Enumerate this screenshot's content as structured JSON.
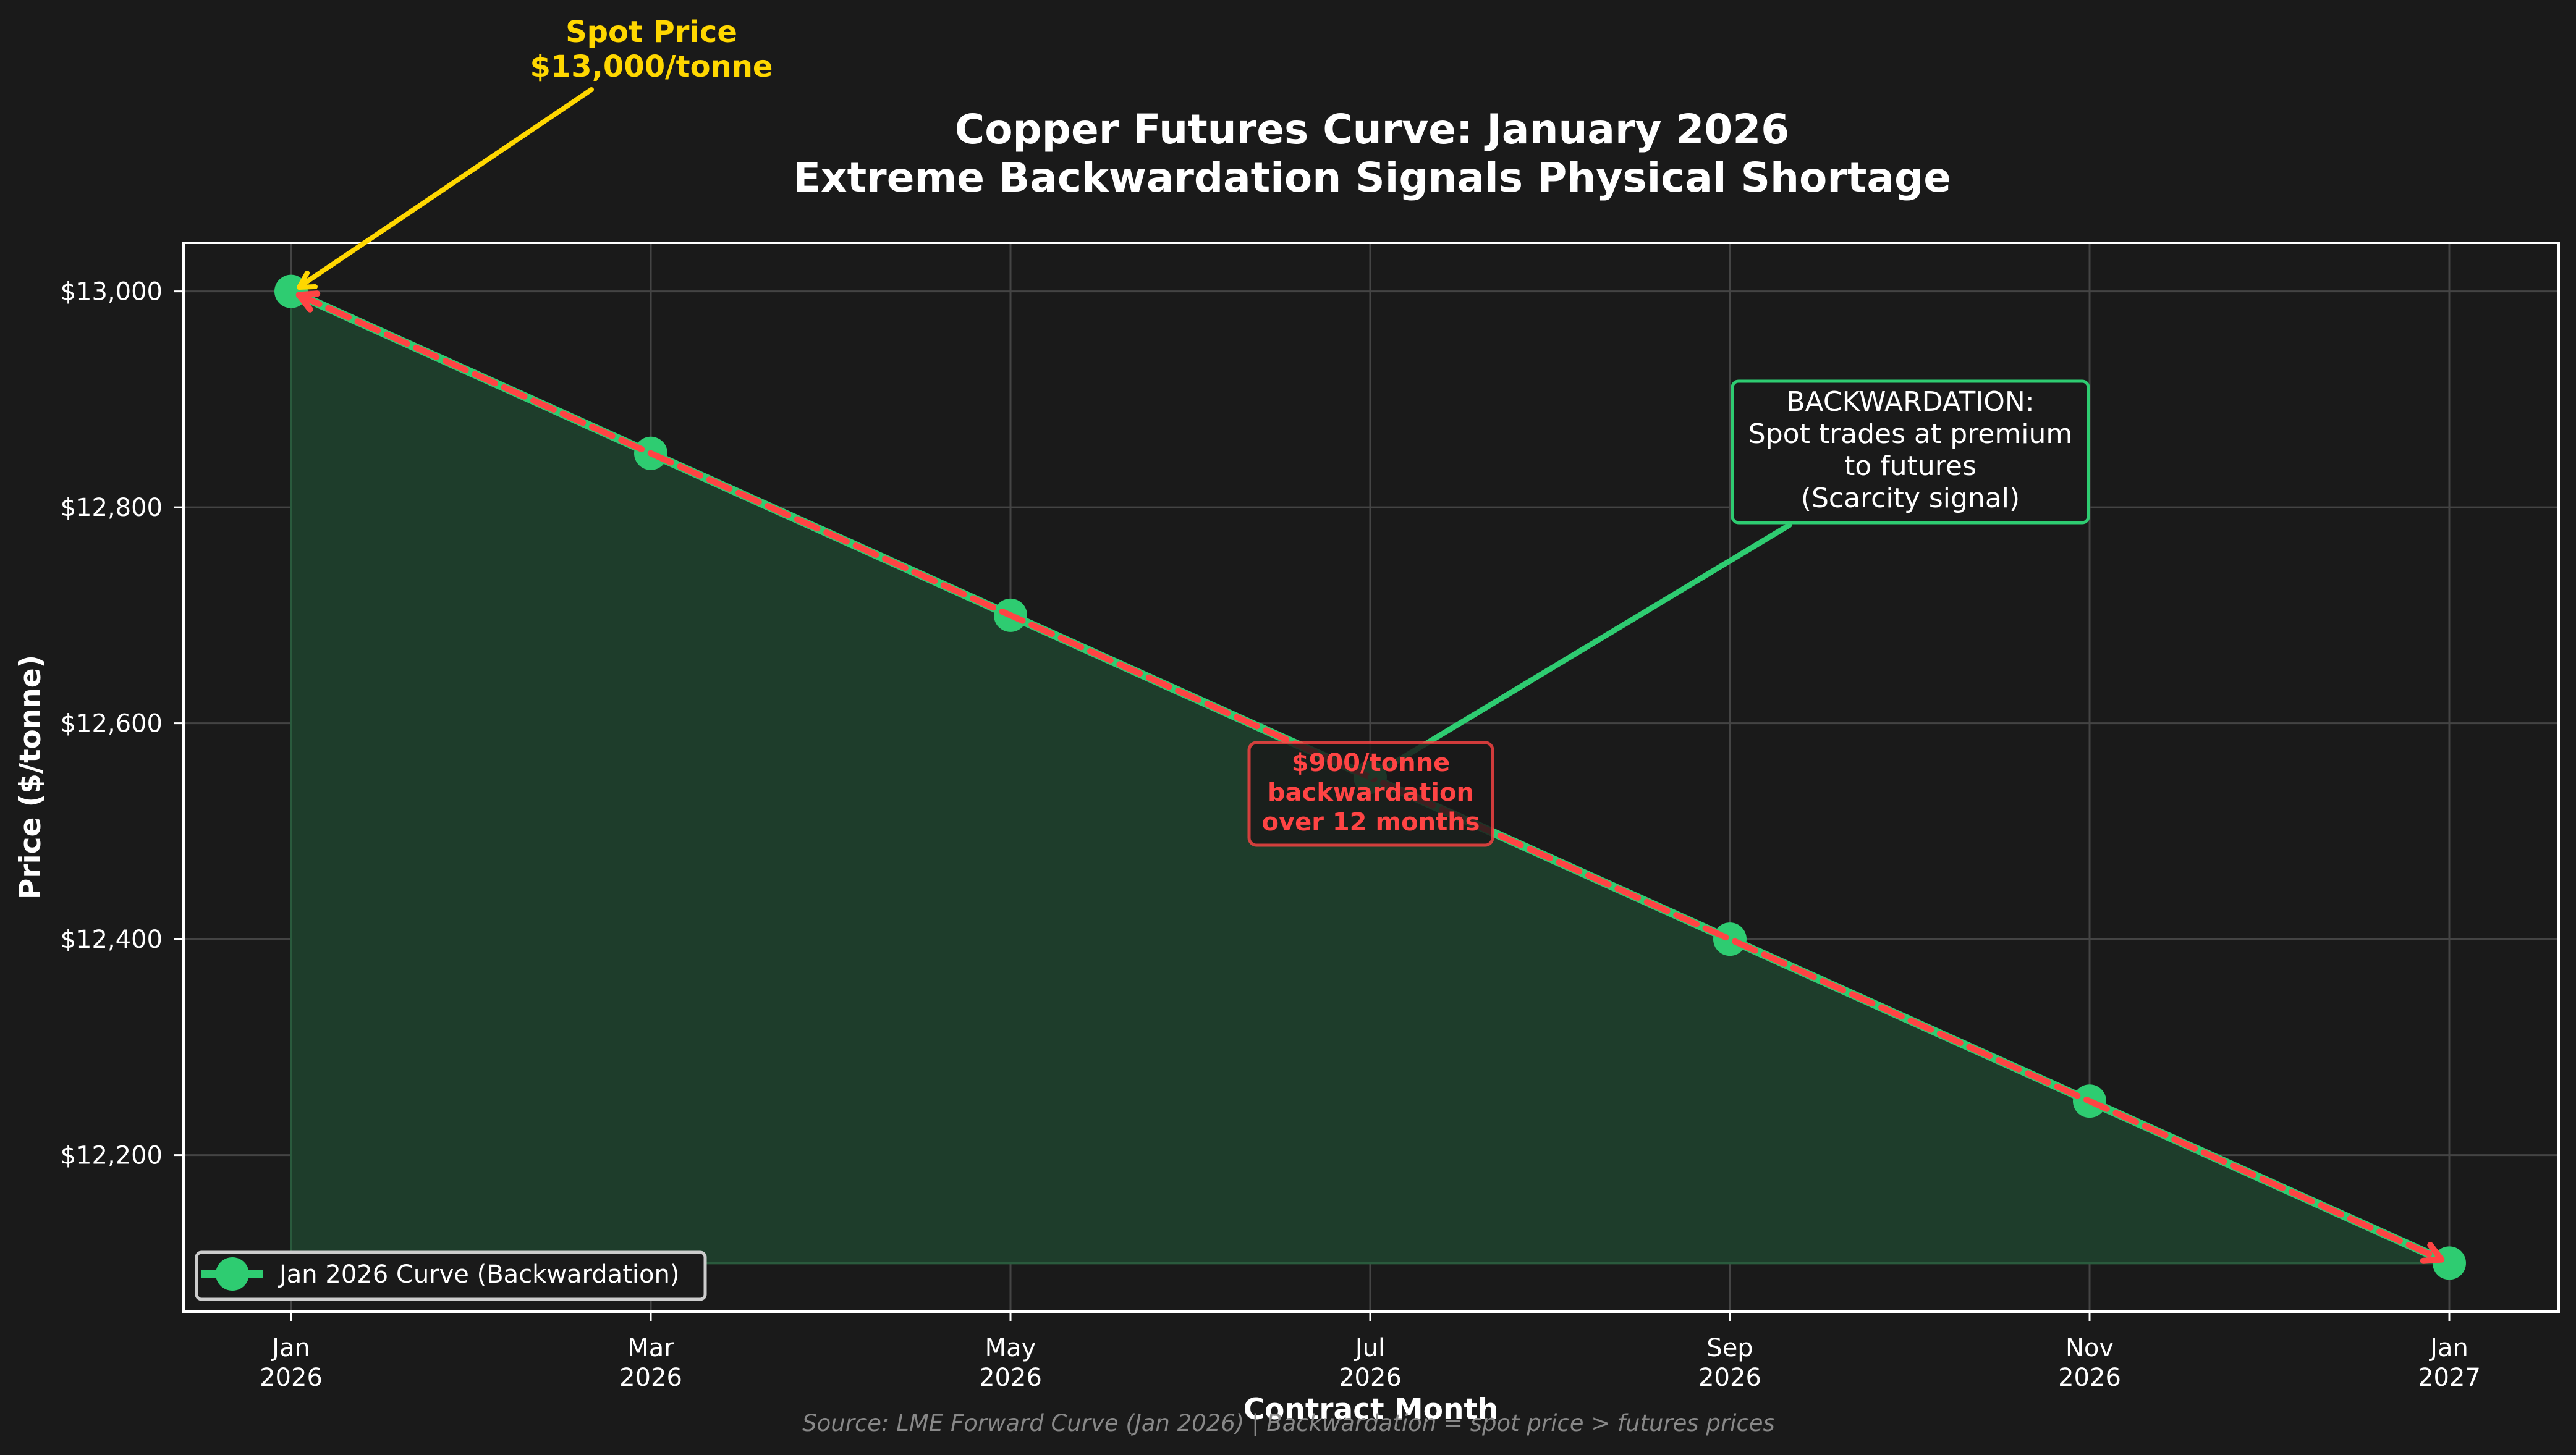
{
  "chart_data": {
    "type": "line",
    "title": "Copper Futures Curve: January 2026",
    "subtitle": "Extreme Backwardation Signals Physical Shortage",
    "xlabel": "Contract Month",
    "ylabel": "Price ($/tonne)",
    "x": [
      "Jan 2026",
      "Mar 2026",
      "May 2026",
      "Jul 2026",
      "Sep 2026",
      "Nov 2026",
      "Jan 2027"
    ],
    "x_tick_labels": [
      {
        "month": "Jan",
        "year": "2026"
      },
      {
        "month": "Mar",
        "year": "2026"
      },
      {
        "month": "May",
        "year": "2026"
      },
      {
        "month": "Jul",
        "year": "2026"
      },
      {
        "month": "Sep",
        "year": "2026"
      },
      {
        "month": "Nov",
        "year": "2026"
      },
      {
        "month": "Jan",
        "year": "2027"
      }
    ],
    "series": [
      {
        "name": "Jan 2026 Curve (Backwardation)",
        "values": [
          13000,
          12850,
          12700,
          12550,
          12400,
          12250,
          12100
        ],
        "color": "#2ecc71",
        "marker": "circle",
        "fill_to": 12100,
        "fill_color": "#1e3d2b"
      }
    ],
    "y_ticks": [
      13000,
      12800,
      12600,
      12400,
      12200
    ],
    "y_tick_labels": [
      "$13,000",
      "$12,800",
      "$12,600",
      "$12,400",
      "$12,200"
    ],
    "ylim": [
      12055,
      13045
    ],
    "grid": true,
    "legend_position": "lower left",
    "annotations": [
      {
        "id": "spot",
        "lines": [
          "Spot Price",
          "$13,000/tonne"
        ],
        "color": "#ffd700",
        "points_to": {
          "x": "Jan 2026",
          "y": 13000
        }
      },
      {
        "id": "backwardation",
        "lines": [
          "BACKWARDATION:",
          "Spot trades at premium",
          "to futures",
          "(Scarcity signal)"
        ],
        "border_color": "#2ecc71",
        "points_to": {
          "x": "Jul 2026",
          "y": 12550
        }
      },
      {
        "id": "spread",
        "lines": [
          "$900/tonne",
          "backwardation",
          "over 12 months"
        ],
        "color": "#ff4444",
        "arrow": {
          "from": {
            "x": "Jan 2026",
            "y": 13000
          },
          "to": {
            "x": "Jan 2027",
            "y": 12100
          },
          "style": "dashed double-headed"
        }
      }
    ],
    "source_note": "Source: LME Forward Curve (Jan 2026) | Backwardation = spot price > futures prices"
  },
  "colors": {
    "background": "#1a1a1a",
    "line": "#2ecc71",
    "fill": "#1e3d2b",
    "spread_arrow": "#ff4444",
    "spot_annotation": "#ffd700",
    "grid": "#444444",
    "source": "#888888"
  }
}
